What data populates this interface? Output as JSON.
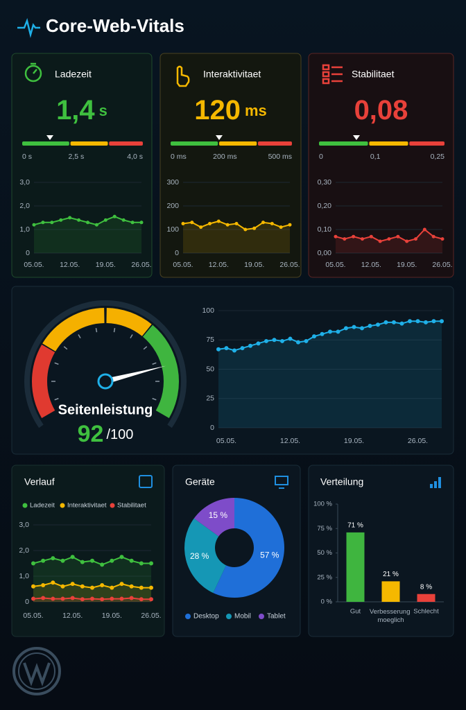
{
  "title": "Core-Web-Vitals",
  "cards": [
    {
      "label": "Ladezeit",
      "value": "1,4",
      "unit": "s",
      "scale_labels": [
        "0 s",
        "2,5 s",
        "4,0 s"
      ]
    },
    {
      "label": "Interaktivitaet",
      "value": "120",
      "unit": "ms",
      "scale_labels": [
        "0 ms",
        "200 ms",
        "500 ms"
      ]
    },
    {
      "label": "Stabilitaet",
      "value": "0,08",
      "unit": "",
      "scale_labels": [
        "0",
        "0,1",
        "0,25"
      ]
    }
  ],
  "chart_data": [
    {
      "type": "line",
      "categories": [
        "05.05.",
        null,
        null,
        null,
        "12.05.",
        null,
        null,
        null,
        "19.05.",
        null,
        null,
        null,
        "26.05."
      ],
      "values": [
        1.2,
        1.3,
        1.3,
        1.4,
        1.5,
        1.4,
        1.3,
        1.2,
        1.4,
        1.55,
        1.4,
        1.3,
        1.3
      ],
      "color": "#3fc03f",
      "ylim": [
        0,
        3
      ],
      "yticks": [
        0,
        {
          "value": 1,
          "label": "1,0"
        },
        {
          "value": 2,
          "label": "2,0"
        },
        {
          "value": 3,
          "label": "3,0"
        }
      ],
      "grid": true
    },
    {
      "type": "line",
      "categories": [
        "05.05.",
        null,
        null,
        null,
        "12.05.",
        null,
        null,
        null,
        "19.05.",
        null,
        null,
        null,
        "26.05."
      ],
      "values": [
        125,
        130,
        110,
        125,
        135,
        120,
        125,
        100,
        105,
        130,
        125,
        110,
        120
      ],
      "color": "#f5b800",
      "ylim": [
        0,
        300
      ],
      "yticks": [
        0,
        100,
        200,
        300
      ],
      "grid": true
    },
    {
      "type": "line",
      "categories": [
        "05.05.",
        null,
        null,
        null,
        "12.05.",
        null,
        null,
        null,
        "19.05.",
        null,
        null,
        null,
        "26.05."
      ],
      "values": [
        0.07,
        0.06,
        0.07,
        0.06,
        0.07,
        0.05,
        0.06,
        0.07,
        0.05,
        0.06,
        0.1,
        0.07,
        0.06
      ],
      "color": "#e8413a",
      "ylim": [
        0,
        0.3
      ],
      "yticks": [
        {
          "value": 0,
          "label": "0,00"
        },
        {
          "value": 0.1,
          "label": "0,10"
        },
        {
          "value": 0.2,
          "label": "0,20"
        },
        {
          "value": 0.3,
          "label": "0,30"
        }
      ],
      "grid": true
    },
    {
      "type": "gauge",
      "title": "Seitenleistung",
      "value": 92,
      "max_label": "/100",
      "ylim": [
        0,
        100
      ]
    },
    {
      "type": "line",
      "categories": [
        null,
        "05.05.",
        null,
        null,
        null,
        null,
        null,
        null,
        null,
        "12.05.",
        null,
        null,
        null,
        null,
        null,
        null,
        null,
        "19.05.",
        null,
        null,
        null,
        null,
        null,
        null,
        null,
        "26.05.",
        null,
        null,
        null
      ],
      "values": [
        67,
        68,
        66,
        68,
        70,
        72,
        74,
        75,
        74,
        76,
        73,
        74,
        78,
        80,
        82,
        82,
        85,
        86,
        85,
        87,
        88,
        90,
        90,
        89,
        91,
        91,
        90,
        91,
        91
      ],
      "color": "#1fb0e8",
      "ylim": [
        0,
        100
      ],
      "yticks": [
        0,
        25,
        50,
        75,
        100
      ],
      "grid": true
    },
    {
      "type": "line",
      "title": "Verlauf",
      "categories": [
        "05.05.",
        null,
        null,
        null,
        "12.05.",
        null,
        null,
        null,
        "19.05.",
        null,
        null,
        null,
        "26.05."
      ],
      "series": [
        {
          "name": "Ladezeit",
          "color": "#3fc03f",
          "values": [
            1.5,
            1.6,
            1.7,
            1.6,
            1.75,
            1.55,
            1.6,
            1.45,
            1.6,
            1.75,
            1.6,
            1.5,
            1.5
          ]
        },
        {
          "name": "Interaktivitaet",
          "color": "#f5b800",
          "values": [
            0.6,
            0.65,
            0.75,
            0.6,
            0.7,
            0.6,
            0.55,
            0.65,
            0.55,
            0.7,
            0.6,
            0.55,
            0.55
          ]
        },
        {
          "name": "Stabilitaet",
          "color": "#e8413a",
          "values": [
            0.12,
            0.15,
            0.12,
            0.12,
            0.15,
            0.1,
            0.12,
            0.1,
            0.12,
            0.12,
            0.15,
            0.1,
            0.1
          ]
        }
      ],
      "ylim": [
        0,
        3
      ],
      "yticks": [
        0,
        {
          "value": 1,
          "label": "1,0"
        },
        {
          "value": 2,
          "label": "2,0"
        },
        {
          "value": 3,
          "label": "3,0"
        }
      ],
      "grid": true
    },
    {
      "type": "pie",
      "title": "Geräte",
      "categories": [
        "Desktop",
        "Mobil",
        "Tablet"
      ],
      "values": [
        57,
        28,
        15
      ],
      "value_labels": [
        "57 %",
        "28 %",
        "15 %"
      ],
      "colors": [
        "#1f6fd8",
        "#1597b5",
        "#7e4cc9"
      ]
    },
    {
      "type": "bar",
      "title": "Verteilung",
      "categories": [
        "Gut",
        "Verbesserung moeglich",
        "Schlecht"
      ],
      "values": [
        71,
        21,
        8
      ],
      "value_labels": [
        "71 %",
        "21 %",
        "8 %"
      ],
      "colors": [
        "#3fb53f",
        "#f5b800",
        "#e8413a"
      ],
      "ylim": [
        0,
        100
      ],
      "yticks": [
        {
          "value": 0,
          "label": "0 %"
        },
        {
          "value": 25,
          "label": "25 %"
        },
        {
          "value": 50,
          "label": "50 %"
        },
        {
          "value": 75,
          "label": "75 %"
        },
        {
          "value": 100,
          "label": "100 %"
        }
      ]
    }
  ]
}
